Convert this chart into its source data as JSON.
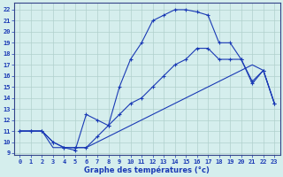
{
  "xlabel": "Graphe des températures (°c)",
  "xlim_min": -0.5,
  "xlim_max": 23.5,
  "ylim_min": 8.8,
  "ylim_max": 22.6,
  "yticks": [
    9,
    10,
    11,
    12,
    13,
    14,
    15,
    16,
    17,
    18,
    19,
    20,
    21,
    22
  ],
  "xticks": [
    0,
    1,
    2,
    3,
    4,
    5,
    6,
    7,
    8,
    9,
    10,
    11,
    12,
    13,
    14,
    15,
    16,
    17,
    18,
    19,
    20,
    21,
    22,
    23
  ],
  "bg_color": "#d5eeed",
  "line_color": "#1a3ab5",
  "grid_color": "#b0d0cc",
  "line1_x": [
    0,
    1,
    2,
    3,
    4,
    5,
    6,
    7,
    8,
    9,
    10,
    11,
    12,
    13,
    14,
    15,
    16,
    17,
    18,
    19,
    20,
    21,
    22,
    23
  ],
  "line1_y": [
    11,
    11,
    11,
    10,
    9.5,
    9.25,
    12.5,
    12.0,
    11.5,
    15.0,
    17.5,
    19.0,
    21.0,
    21.5,
    22.0,
    22.0,
    21.8,
    21.5,
    19.0,
    19.0,
    17.5,
    15.3,
    16.5,
    13.5
  ],
  "line2_x": [
    0,
    1,
    2,
    3,
    4,
    5,
    6,
    7,
    8,
    9,
    10,
    11,
    12,
    13,
    14,
    15,
    16,
    17,
    18,
    19,
    20,
    21,
    22,
    23
  ],
  "line2_y": [
    11,
    11,
    11,
    10,
    9.5,
    9.5,
    9.5,
    10.5,
    11.5,
    12.5,
    13.5,
    14.0,
    15.0,
    16.0,
    17.0,
    17.5,
    18.5,
    18.5,
    17.5,
    17.5,
    17.5,
    15.5,
    16.5,
    13.5
  ],
  "line3_x": [
    0,
    1,
    2,
    3,
    4,
    5,
    6,
    7,
    8,
    9,
    10,
    11,
    12,
    13,
    14,
    15,
    16,
    17,
    18,
    19,
    20,
    21,
    22,
    23
  ],
  "line3_y": [
    11,
    11,
    11,
    9.5,
    9.5,
    9.5,
    9.5,
    10.0,
    10.5,
    11.0,
    11.5,
    12.0,
    12.5,
    13.0,
    13.5,
    14.0,
    14.5,
    15.0,
    15.5,
    16.0,
    16.5,
    17.0,
    16.5,
    13.5
  ]
}
